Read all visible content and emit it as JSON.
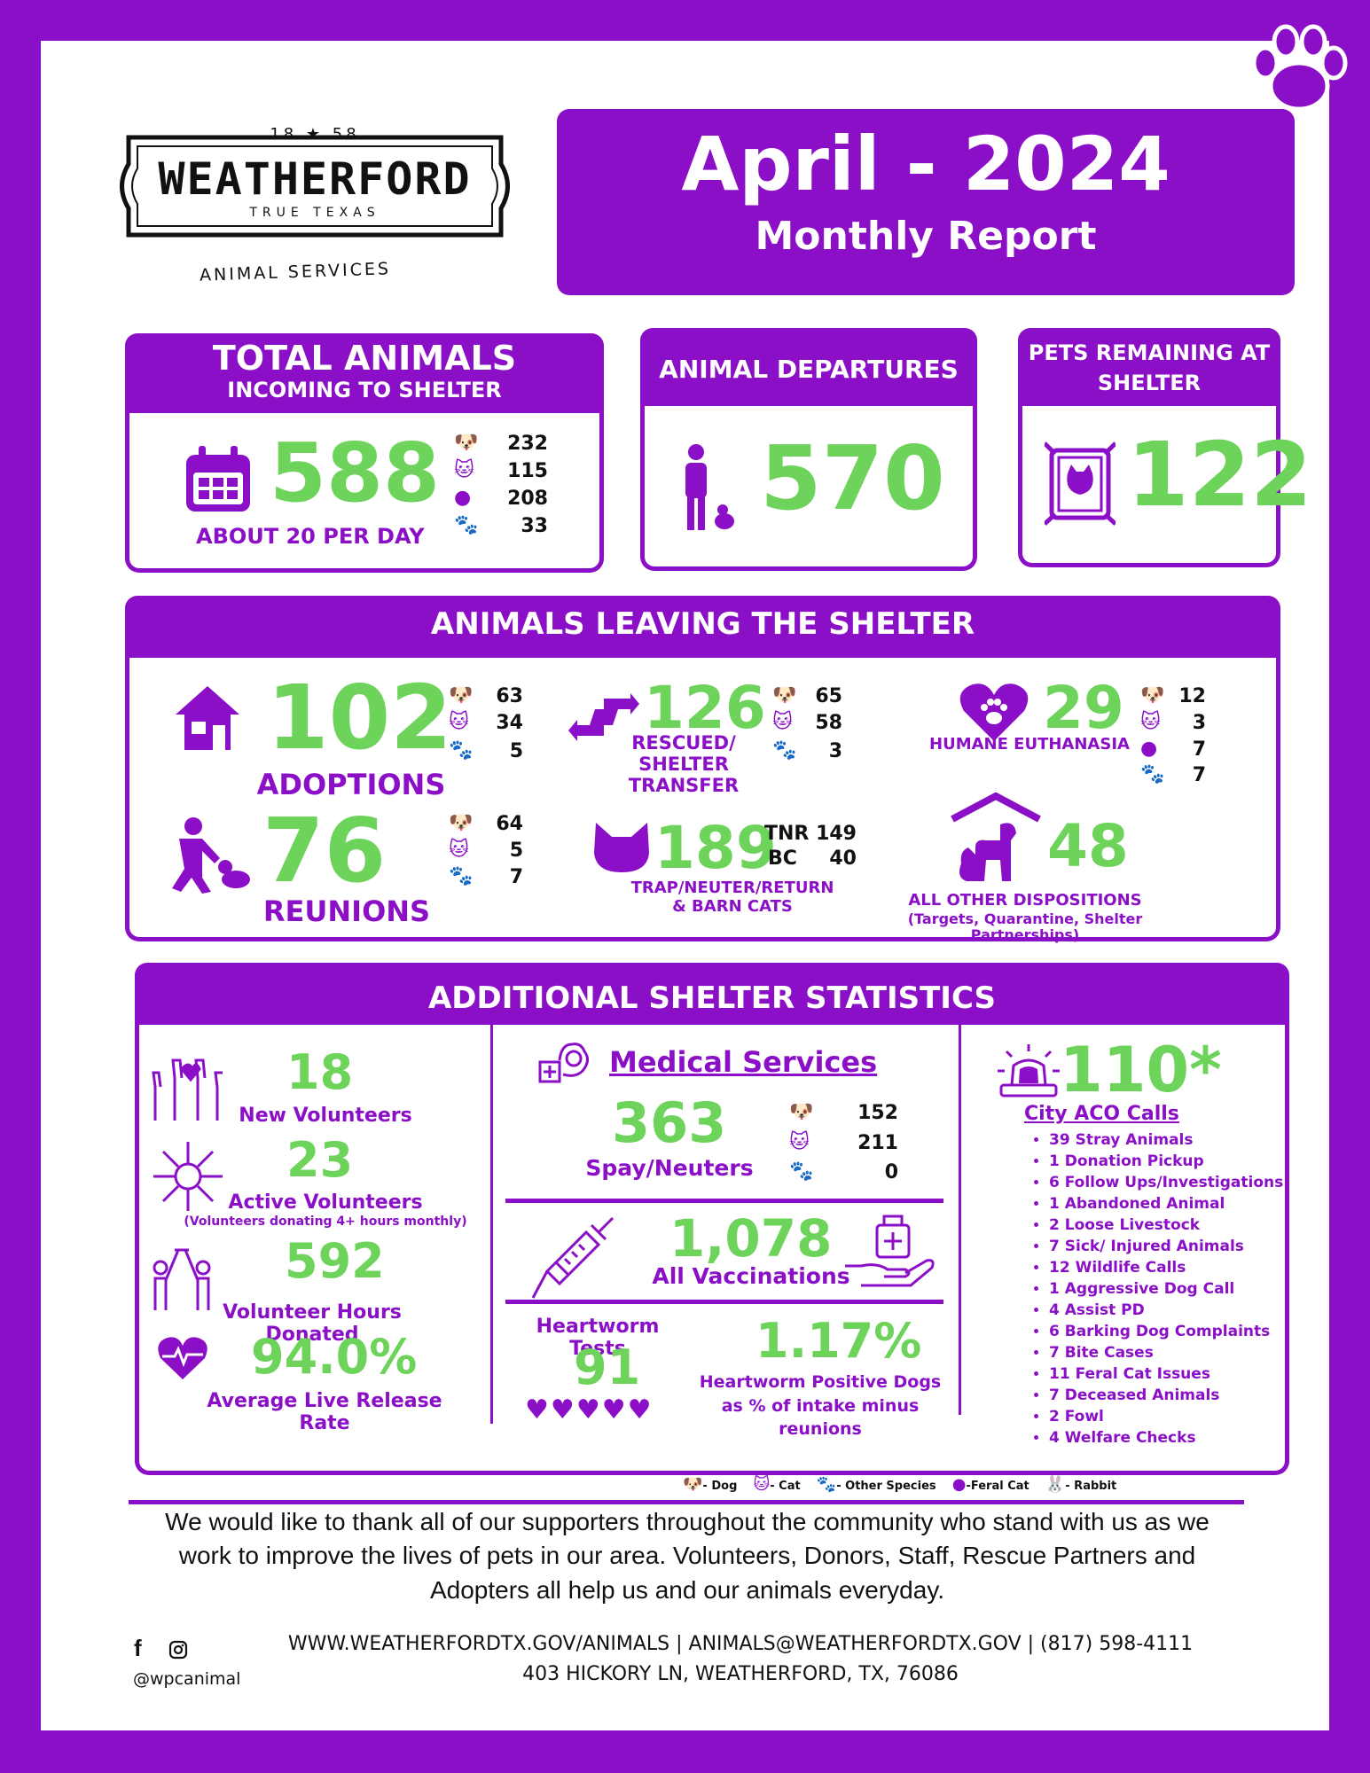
{
  "logo": {
    "year_left": "18",
    "year_right": "58",
    "name": "WEATHERFORD",
    "tagline": "TRUE TEXAS",
    "subtitle": "ANIMAL SERVICES"
  },
  "title": {
    "month_year": "April - 2024",
    "subtitle": "Monthly Report"
  },
  "incoming": {
    "title": "TOTAL ANIMALS",
    "subtitle": "INCOMING TO SHELTER",
    "total": "588",
    "per_day": "ABOUT 20 PER DAY",
    "dogs": "232",
    "cats": "115",
    "feral": "208",
    "other": "33"
  },
  "departures": {
    "title": "ANIMAL DEPARTURES",
    "total": "570"
  },
  "remaining": {
    "title": "PETS REMAINING AT SHELTER",
    "total": "122"
  },
  "leaving": {
    "title": "ANIMALS LEAVING THE SHELTER",
    "adoptions": {
      "value": "102",
      "label": "ADOPTIONS",
      "dogs": "63",
      "cats": "34",
      "other": "5"
    },
    "transfer": {
      "value": "126",
      "label": "RESCUED/ SHELTER TRANSFER",
      "dogs": "65",
      "cats": "58",
      "other": "3"
    },
    "euthanasia": {
      "value": "29",
      "label": "HUMANE EUTHANASIA",
      "dogs": "12",
      "cats": "3",
      "feral": "7",
      "other": "7"
    },
    "reunions": {
      "value": "76",
      "label": "REUNIONS",
      "dogs": "64",
      "cats": "5",
      "other": "7"
    },
    "tnr": {
      "value": "189",
      "label": "TRAP/NEUTER/RETURN & BARN CATS",
      "tnr_label": "TNR",
      "tnr_value": "149",
      "bc_label": "BC",
      "bc_value": "40"
    },
    "other": {
      "value": "48",
      "label": "ALL OTHER DISPOSITIONS",
      "sublabel": "(Targets, Quarantine, Shelter Partnerships)"
    }
  },
  "additional": {
    "title": "ADDITIONAL SHELTER STATISTICS",
    "new_volunteers": {
      "value": "18",
      "label": "New Volunteers"
    },
    "active_volunteers": {
      "value": "23",
      "label": "Active Volunteers",
      "note": "(Volunteers donating 4+ hours monthly)"
    },
    "volunteer_hours": {
      "value": "592",
      "label": "Volunteer Hours Donated"
    },
    "live_release": {
      "value": "94.0%",
      "label": "Average Live Release Rate"
    },
    "medical": {
      "title": "Medical Services",
      "spay_value": "363",
      "spay_label": "Spay/Neuters",
      "dogs": "152",
      "cats": "211",
      "other": "0"
    },
    "vaccinations": {
      "value": "1,078",
      "label": "All Vaccinations"
    },
    "heartworm_tests": {
      "label": "Heartworm Tests",
      "value": "91"
    },
    "heartworm_positive": {
      "value": "1.17%",
      "label": "Heartworm Positive Dogs as % of intake minus reunions"
    },
    "aco": {
      "value": "110*",
      "title": "City ACO Calls",
      "items": [
        "39 Stray Animals",
        "1 Donation Pickup",
        "6 Follow Ups/Investigations",
        "1 Abandoned Animal",
        "2 Loose Livestock",
        "7  Sick/ Injured Animals",
        "12 Wildlife Calls",
        "1 Aggressive Dog Call",
        "4 Assist PD",
        "6 Barking Dog Complaints",
        "7 Bite Cases",
        "11 Feral Cat Issues",
        "7 Deceased Animals",
        "2 Fowl",
        "4 Welfare Checks"
      ]
    }
  },
  "legend": {
    "dog": "- Dog",
    "cat": "- Cat",
    "other": "- Other Species",
    "feral": "-Feral Cat",
    "rabbit": "- Rabbit"
  },
  "thanks": "We would like to thank all of our supporters throughout the community who stand with us as we work to improve the lives of pets in our area. Volunteers, Donors, Staff, Rescue Partners and Adopters all help us and our animals everyday.",
  "footer": {
    "social_handle": "@wpcanimal",
    "contact": "WWW.WEATHERFORDTX.GOV/ANIMALS | ANIMALS@WEATHERFORDTX.GOV | (817) 598-4111",
    "address": "403 HICKORY LN, WEATHERFORD, TX, 76086"
  },
  "colors": {
    "brand_purple": "#8a0fc7",
    "accent_green": "#6dd35a"
  },
  "icons": [
    "paw-icon",
    "calendar-icon",
    "dog-face-icon",
    "cat-face-icon",
    "feral-cat-icon",
    "person-with-cat-icon",
    "caged-cat-icon",
    "house-icon",
    "transfer-arrows-icon",
    "heart-paw-icon",
    "person-petting-dog-icon",
    "cat-head-icon",
    "dog-cat-shelter-icon",
    "raised-hands-icon",
    "circle-hands-icon",
    "high-five-icon",
    "heartbeat-icon",
    "medical-pets-icon",
    "syringe-icon",
    "hand-medicine-icon",
    "heart-icon",
    "siren-icon",
    "rabbit-icon",
    "facebook-icon",
    "instagram-icon"
  ]
}
